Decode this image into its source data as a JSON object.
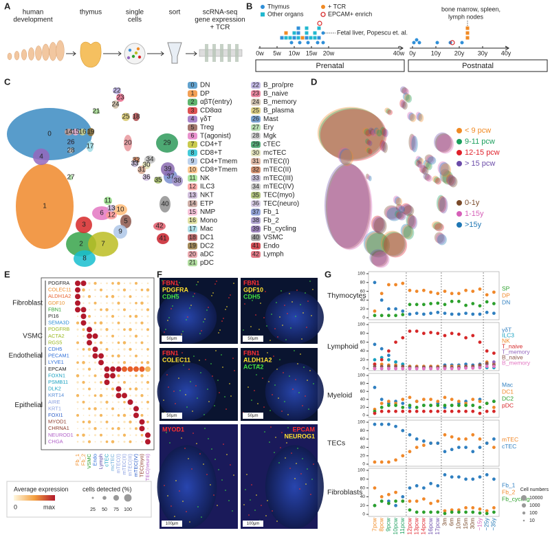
{
  "panel_labels": [
    "A",
    "B",
    "C",
    "D",
    "E",
    "F",
    "G"
  ],
  "A": {
    "steps": [
      [
        "human",
        "development"
      ],
      [
        "thymus"
      ],
      [
        "single",
        "cells"
      ],
      [
        "sort"
      ],
      [
        "scRNA-seq",
        "gene expression",
        "+ TCR"
      ]
    ]
  },
  "B": {
    "legend": [
      {
        "label": "Thymus",
        "color": "#2f8fd8"
      },
      {
        "label": "Other organs",
        "color": "#22b8cf"
      },
      {
        "label": "+ TCR",
        "color": "#f08a24"
      },
      {
        "label": "EPCAM+ enrich",
        "color": "#d62728"
      }
    ],
    "annotations": [
      "Fetal liver, Popescu et. al.",
      "bone marrow, spleen,",
      "lymph nodes"
    ],
    "ticks": [
      "0w",
      "5w",
      "10w",
      "15w",
      "20w",
      "40w",
      "0y",
      "10y",
      "20y",
      "30y",
      "40y"
    ],
    "periods": [
      "Prenatal",
      "Postnatal"
    ]
  },
  "C": {
    "clusters": [
      {
        "id": 0,
        "name": "DN",
        "color": "#3b8bc2"
      },
      {
        "id": 1,
        "name": "DP",
        "color": "#f0882a"
      },
      {
        "id": 2,
        "name": "αβT(entry)",
        "color": "#37a34a"
      },
      {
        "id": 3,
        "name": "CD8αα",
        "color": "#d62728"
      },
      {
        "id": 4,
        "name": "γδT",
        "color": "#9467bd"
      },
      {
        "id": 5,
        "name": "Treg",
        "color": "#8c564b"
      },
      {
        "id": 6,
        "name": "T(agonist)",
        "color": "#e377c2"
      },
      {
        "id": 7,
        "name": "CD4+T",
        "color": "#bcbd22"
      },
      {
        "id": 8,
        "name": "CD8+T",
        "color": "#17becf"
      },
      {
        "id": 9,
        "name": "CD4+Tmem",
        "color": "#aec7e8"
      },
      {
        "id": 10,
        "name": "CD8+Tmem",
        "color": "#ffbb78"
      },
      {
        "id": 11,
        "name": "NK",
        "color": "#98df8a"
      },
      {
        "id": 12,
        "name": "ILC3",
        "color": "#ff9896"
      },
      {
        "id": 13,
        "name": "NKT",
        "color": "#c5b0d5"
      },
      {
        "id": 14,
        "name": "ETP",
        "color": "#c49c94"
      },
      {
        "id": 15,
        "name": "NMP",
        "color": "#f7b6d2"
      },
      {
        "id": 16,
        "name": "Mono",
        "color": "#dbdb8d"
      },
      {
        "id": 17,
        "name": "Mac",
        "color": "#9edae5"
      },
      {
        "id": 18,
        "name": "DC1",
        "color": "#ad494a"
      },
      {
        "id": 19,
        "name": "DC2",
        "color": "#8c6d31"
      },
      {
        "id": 20,
        "name": "aDC",
        "color": "#e7969c"
      },
      {
        "id": 21,
        "name": "pDC",
        "color": "#9fd68a"
      },
      {
        "id": 22,
        "name": "B_pro/pre",
        "color": "#b5a9e0"
      },
      {
        "id": 23,
        "name": "B_naive",
        "color": "#e86a8a"
      },
      {
        "id": 24,
        "name": "B_memory",
        "color": "#c9b8a0"
      },
      {
        "id": 25,
        "name": "B_plasma",
        "color": "#d8c86a"
      },
      {
        "id": 26,
        "name": "Mast",
        "color": "#5a8fc8"
      },
      {
        "id": 27,
        "name": "Ery",
        "color": "#a8d8a0"
      },
      {
        "id": 28,
        "name": "Mgk",
        "color": "#c8c8c8"
      },
      {
        "id": 29,
        "name": "cTEC",
        "color": "#2e9a5a"
      },
      {
        "id": 30,
        "name": "mcTEC",
        "color": "#e0e0b0"
      },
      {
        "id": 31,
        "name": "mTEC(I)",
        "color": "#d8a890"
      },
      {
        "id": 32,
        "name": "mTEC(II)",
        "color": "#c87850"
      },
      {
        "id": 33,
        "name": "mTEC(III)",
        "color": "#b8b0d0"
      },
      {
        "id": 34,
        "name": "mTEC(IV)",
        "color": "#c0c0c0"
      },
      {
        "id": 35,
        "name": "TEC(myo)",
        "color": "#a0b860"
      },
      {
        "id": 36,
        "name": "TEC(neuro)",
        "color": "#d0c0e0"
      },
      {
        "id": 37,
        "name": "Fb_1",
        "color": "#7a8fd0"
      },
      {
        "id": 38,
        "name": "Fb_2",
        "color": "#a090c8"
      },
      {
        "id": 39,
        "name": "Fb_cycling",
        "color": "#8a6ab0"
      },
      {
        "id": 40,
        "name": "VSMC",
        "color": "#909090"
      },
      {
        "id": 41,
        "name": "Endo",
        "color": "#c8202a"
      },
      {
        "id": 42,
        "name": "Lymph",
        "color": "#e05a6a"
      }
    ]
  },
  "D": {
    "legend": [
      {
        "label": "< 9 pcw",
        "color": "#f08a24"
      },
      {
        "label": "9-11 pcw",
        "color": "#1a9e5c"
      },
      {
        "label": "12-15 pcw",
        "color": "#e0202a"
      },
      {
        "label": "> 15 pcw",
        "color": "#6a4aa8"
      },
      {
        "label": "0-1y",
        "color": "#7a4a2a"
      },
      {
        "label": "1-15y",
        "color": "#d65fb8"
      },
      {
        "label": ">15y",
        "color": "#1f77b4"
      }
    ]
  },
  "E": {
    "groups": [
      "Fibroblast",
      "VSMC",
      "Endothelial",
      "Epithelial"
    ],
    "genes": [
      {
        "name": "PDGFRA",
        "color": "#222222"
      },
      {
        "name": "COLEC11",
        "color": "#f08a24"
      },
      {
        "name": "ALDH1A2",
        "color": "#e8602a"
      },
      {
        "name": "GDF10",
        "color": "#e8902a"
      },
      {
        "name": "FBN1",
        "color": "#2ca02c"
      },
      {
        "name": "PI16",
        "color": "#222222"
      },
      {
        "name": "SEMA3D",
        "color": "#2f8fd8"
      },
      {
        "name": "PDGFRB",
        "color": "#9ab820"
      },
      {
        "name": "ACTA2",
        "color": "#9ab820"
      },
      {
        "name": "RGS5",
        "color": "#9ab820"
      },
      {
        "name": "CDH5",
        "color": "#2f6fd8"
      },
      {
        "name": "PECAM1",
        "color": "#2f6fd8"
      },
      {
        "name": "LYVE1",
        "color": "#2f6fd8"
      },
      {
        "name": "EPCAM",
        "color": "#222222"
      },
      {
        "name": "FOXN1",
        "color": "#17a0c0"
      },
      {
        "name": "PSMB11",
        "color": "#17a0c0"
      },
      {
        "name": "DLK2",
        "color": "#17a0c0"
      },
      {
        "name": "KRT14",
        "color": "#5a8fd8"
      },
      {
        "name": "AIRE",
        "color": "#8a9fe0"
      },
      {
        "name": "KRT1",
        "color": "#8a9fe0"
      },
      {
        "name": "FOXI1",
        "color": "#2f5fc8"
      },
      {
        "name": "MYOD1",
        "color": "#8c3a2a"
      },
      {
        "name": "CHRNA1",
        "color": "#8c3a2a"
      },
      {
        "name": "NEUROD1",
        "color": "#b060c8"
      },
      {
        "name": "CHGA",
        "color": "#b060c8"
      }
    ],
    "columns": [
      {
        "name": "Fb_1",
        "color": "#f08a24"
      },
      {
        "name": "Fb_2",
        "color": "#e8902a"
      },
      {
        "name": "VSMC",
        "color": "#2ca02c"
      },
      {
        "name": "Endo",
        "color": "#2f6fd8"
      },
      {
        "name": "Lymph",
        "color": "#5a4aa8"
      },
      {
        "name": "cTEC",
        "color": "#17a0c0"
      },
      {
        "name": "mcTEC",
        "color": "#6aaad8"
      },
      {
        "name": "mTEC(I)",
        "color": "#8a9fe0"
      },
      {
        "name": "mTEC(II)",
        "color": "#8a9fe0"
      },
      {
        "name": "mTEC(III)",
        "color": "#8a9fe0"
      },
      {
        "name": "mTEC(IV)",
        "color": "#2f5fc8"
      },
      {
        "name": "TEC(myo)",
        "color": "#8c3a2a"
      },
      {
        "name": "TEC(neuro)",
        "color": "#b060c8"
      }
    ],
    "legend": {
      "expression_title": "Average expression",
      "expression_low": "0",
      "expression_high": "max",
      "size_title": "cells detected (%)",
      "sizes": [
        25,
        50,
        75,
        100
      ]
    }
  },
  "F": {
    "images": [
      {
        "labels": [
          {
            "text": "FBN1",
            "color": "#ff3030"
          },
          {
            "text": "PDGFRA",
            "color": "#ffe030"
          },
          {
            "text": "CDH5",
            "color": "#40e040"
          }
        ],
        "scale": "50μm"
      },
      {
        "labels": [
          {
            "text": "FBN1",
            "color": "#ff3030"
          },
          {
            "text": "GDF10",
            "color": "#ffe030"
          },
          {
            "text": "CDH5",
            "color": "#40e040"
          }
        ],
        "scale": "50μm"
      },
      {
        "labels": [
          {
            "text": "FBN1",
            "color": "#ff3030"
          },
          {
            "text": "COLEC11",
            "color": "#ffe030"
          }
        ],
        "scale": "50μm"
      },
      {
        "labels": [
          {
            "text": "FBN1",
            "color": "#ff3030"
          },
          {
            "text": "ALDH1A2",
            "color": "#ffe030"
          },
          {
            "text": "ACTA2",
            "color": "#40e040"
          }
        ],
        "scale": "50μm"
      },
      {
        "labels": [
          {
            "text": "MYOD1",
            "color": "#ff3030"
          }
        ],
        "scale": "100μm"
      },
      {
        "labels": [
          {
            "text": "EPCAM",
            "color": "#ff3030"
          },
          {
            "text": "NEUROG1",
            "color": "#ffe030"
          }
        ],
        "scale": "100μm"
      }
    ]
  },
  "G": {
    "type": "scatter",
    "categories": [
      "7pcw",
      "8pcw",
      "9pcw",
      "10pcw",
      "11pcw",
      "12pcw",
      "13pcw",
      "14pcw",
      "16pcw",
      "17pcw",
      "3m",
      "6m",
      "10m",
      "15m",
      "30m",
      "~15y",
      "~25y",
      "~35y"
    ],
    "category_colors": [
      "#f08a24",
      "#f08a24",
      "#1a9e5c",
      "#1a9e5c",
      "#1a9e5c",
      "#e0202a",
      "#e0202a",
      "#e0202a",
      "#6a4aa8",
      "#6a4aa8",
      "#7a4a2a",
      "#7a4a2a",
      "#7a4a2a",
      "#7a4a2a",
      "#7a4a2a",
      "#d65fb8",
      "#1f77b4",
      "#1f77b4"
    ],
    "ylim": [
      0,
      100
    ],
    "yticks": [
      0,
      20,
      40,
      60,
      80,
      100
    ],
    "rows": [
      {
        "title": "Thymocytes",
        "series": [
          {
            "name": "SP",
            "color": "#2ca02c",
            "values": [
              5,
              5,
              5,
              5,
              7,
              30,
              30,
              30,
              32,
              33,
              30,
              37,
              37,
              28,
              32,
              27,
              36,
              32
            ]
          },
          {
            "name": "DP",
            "color": "#f0882a",
            "values": [
              15,
              55,
              75,
              75,
              78,
              62,
              60,
              62,
              58,
              55,
              60,
              55,
              55,
              62,
              60,
              65,
              52,
              58
            ]
          },
          {
            "name": "DN",
            "color": "#2f7fc0",
            "values": [
              80,
              40,
              20,
              20,
              15,
              8,
              10,
              8,
              10,
              12,
              10,
              8,
              8,
              10,
              8,
              8,
              12,
              10
            ]
          }
        ]
      },
      {
        "title": "Lymphoid",
        "series": [
          {
            "name": "γδT",
            "color": "#2f7fc0",
            "values": [
              55,
              45,
              30,
              15,
              10,
              5,
              5,
              5,
              5,
              5,
              8,
              8,
              8,
              10,
              8,
              10,
              10,
              8
            ]
          },
          {
            "name": "ILC3",
            "color": "#17a0c0",
            "values": [
              20,
              25,
              20,
              15,
              10,
              5,
              3,
              3,
              3,
              3,
              2,
              2,
              2,
              2,
              2,
              2,
              2,
              2
            ]
          },
          {
            "name": "NK",
            "color": "#f0882a",
            "values": [
              10,
              10,
              8,
              8,
              5,
              5,
              5,
              5,
              5,
              5,
              5,
              5,
              5,
              5,
              5,
              8,
              15,
              12
            ]
          },
          {
            "name": "T_naive",
            "color": "#d62728",
            "values": [
              10,
              20,
              40,
              60,
              70,
              85,
              85,
              80,
              82,
              80,
              75,
              80,
              78,
              70,
              75,
              60,
              40,
              35
            ]
          },
          {
            "name": "T_memory",
            "color": "#9467bd",
            "values": [
              0,
              0,
              0,
              0,
              0,
              0,
              0,
              0,
              0,
              1,
              1,
              1,
              1,
              2,
              2,
              5,
              10,
              15
            ]
          },
          {
            "name": "B_naive",
            "color": "#8c564b",
            "values": [
              5,
              5,
              5,
              5,
              5,
              3,
              3,
              3,
              3,
              3,
              5,
              3,
              3,
              5,
              5,
              8,
              12,
              8
            ]
          },
          {
            "name": "B_memory",
            "color": "#e377c2",
            "values": [
              0,
              0,
              0,
              0,
              0,
              0,
              0,
              0,
              0,
              0,
              0,
              0,
              0,
              1,
              1,
              2,
              5,
              5
            ]
          }
        ]
      },
      {
        "title": "Myeloid",
        "series": [
          {
            "name": "Mac",
            "color": "#2f7fc0",
            "values": [
              70,
              40,
              30,
              35,
              30,
              20,
              35,
              25,
              25,
              30,
              20,
              25,
              30,
              35,
              25,
              40,
              30,
              35
            ]
          },
          {
            "name": "DC1",
            "color": "#f0882a",
            "values": [
              15,
              30,
              35,
              30,
              40,
              45,
              35,
              40,
              40,
              35,
              45,
              40,
              35,
              30,
              40,
              35,
              30,
              20
            ]
          },
          {
            "name": "DC2",
            "color": "#2ca02c",
            "values": [
              10,
              20,
              25,
              25,
              20,
              25,
              20,
              25,
              25,
              25,
              25,
              25,
              25,
              25,
              25,
              20,
              30,
              35
            ]
          },
          {
            "name": "pDC",
            "color": "#d62728",
            "values": [
              5,
              10,
              10,
              10,
              10,
              10,
              10,
              10,
              10,
              10,
              10,
              10,
              10,
              10,
              10,
              5,
              10,
              10
            ]
          }
        ]
      },
      {
        "title": "TECs",
        "series": [
          {
            "name": "mTEC",
            "color": "#f0882a",
            "values": [
              5,
              5,
              5,
              10,
              20,
              30,
              40,
              45,
              50,
              50,
              70,
              65,
              60,
              60,
              70,
              60,
              50,
              40
            ]
          },
          {
            "name": "cTEC",
            "color": "#2f7fc0",
            "values": [
              95,
              95,
              95,
              90,
              80,
              70,
              60,
              55,
              50,
              50,
              30,
              35,
              40,
              40,
              30,
              40,
              50,
              60
            ]
          }
        ]
      },
      {
        "title": "Fibroblasts",
        "series": [
          {
            "name": "Fb_1",
            "color": "#2f7fc0",
            "values": [
              20,
              30,
              30,
              20,
              40,
              60,
              65,
              60,
              70,
              65,
              90,
              85,
              85,
              80,
              80,
              85,
              90,
              80
            ]
          },
          {
            "name": "Fb_2",
            "color": "#f0882a",
            "values": [
              60,
              40,
              45,
              50,
              30,
              30,
              30,
              35,
              25,
              30,
              8,
              10,
              10,
              15,
              15,
              12,
              8,
              15
            ]
          },
          {
            "name": "Fb_cycling",
            "color": "#2ca02c",
            "values": [
              20,
              30,
              25,
              30,
              30,
              10,
              5,
              5,
              5,
              5,
              2,
              5,
              5,
              5,
              5,
              3,
              2,
              5
            ]
          }
        ]
      }
    ],
    "size_legend": {
      "title": "Cell numbers",
      "values": [
        10000,
        1000,
        100,
        10
      ]
    }
  }
}
